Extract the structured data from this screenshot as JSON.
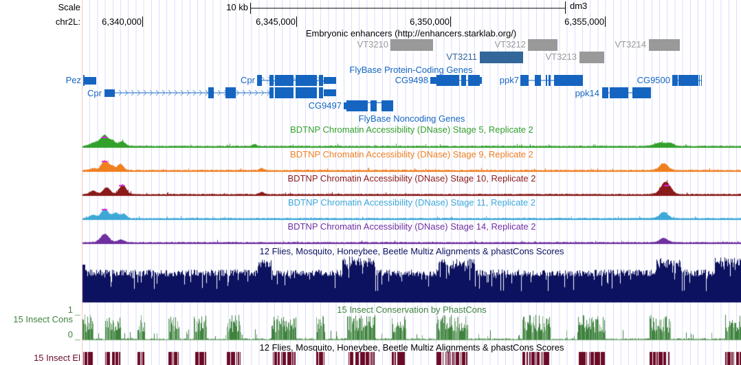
{
  "ruler": {
    "scale_label": "Scale",
    "chrom_label": "chr2L:",
    "scale_bar": "10 kb",
    "assembly": "dm3",
    "ticks": [
      "6,340,000",
      "6,345,000",
      "6,350,000",
      "6,355,000"
    ]
  },
  "enhancers": {
    "title": "Embryonic enhancers (http://enhancers.starklab.org/)",
    "items": [
      "VT3210",
      "VT3212",
      "VT3214",
      "VT3211",
      "VT3213"
    ]
  },
  "protein_genes": {
    "title": "FlyBase Protein-Coding Genes",
    "genes": [
      "Pez",
      "Cpr",
      "Cpr",
      "CG9497",
      "CG9498",
      "ppk7",
      "ppk14",
      "CG9500"
    ]
  },
  "noncoding_genes": {
    "title": "FlyBase Noncoding Genes"
  },
  "dnase_tracks": [
    {
      "title": "BDTNP Chromatin Accessibility (DNase) Stage 5, Replicate 2",
      "color": "#33a02c"
    },
    {
      "title": "BDTNP Chromatin Accessibility (DNase) Stage 9, Replicate 2",
      "color": "#f07f20"
    },
    {
      "title": "BDTNP Chromatin Accessibility (DNase) Stage 10, Replicate 2",
      "color": "#8b1a1a"
    },
    {
      "title": "BDTNP Chromatin Accessibility (DNase) Stage 11, Replicate 2",
      "color": "#3ea8d8"
    },
    {
      "title": "BDTNP Chromatin Accessibility (DNase) Stage 14, Replicate 2",
      "color": "#7030a0"
    }
  ],
  "multiz": {
    "title": "12 Flies, Mosquito, Honeybee, Beetle Multiz Alignments & phastCons Scores",
    "color": "#0d1260"
  },
  "cons": {
    "title": "15 Insect Conservation by PhastCons",
    "label": "15 Insect Cons",
    "ymax": "1",
    "ymin": "0",
    "color": "#3f823f"
  },
  "elements": {
    "title": "12 Flies, Mosquito, Honeybee, Beetle Multiz Alignments & phastCons Scores",
    "label": "15 Insect El",
    "color": "#6b0a27"
  }
}
